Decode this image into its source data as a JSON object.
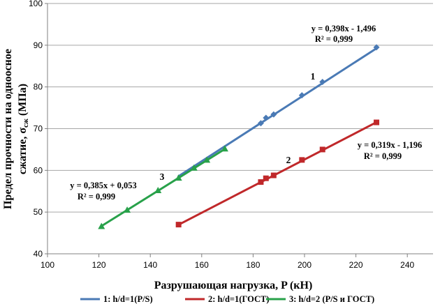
{
  "chart_data": {
    "type": "scatter",
    "xlabel": "Разрушающая нагрузка, P (кН)",
    "ylabel": "Предел прочности на одноосное сжатие, σсж (МПа)",
    "ylabel_line1": "Предел прочности на одноосное",
    "ylabel_line2_pre": "сжатие, σ",
    "ylabel_line2_sub": "сж",
    "ylabel_line2_post": " (МПа)",
    "xlim": [
      100,
      250
    ],
    "ylim": [
      40,
      100
    ],
    "xticks": [
      "100",
      "120",
      "140",
      "160",
      "180",
      "200",
      "220",
      "240"
    ],
    "yticks": [
      "40",
      "50",
      "60",
      "70",
      "80",
      "90",
      "100"
    ],
    "grid": "horizontal",
    "legend_position": "bottom",
    "series": [
      {
        "name": "1: h/d=1(P/S)",
        "label": "1",
        "color": "#4a7ab5",
        "marker": "diamond",
        "x": [
          183,
          185,
          188,
          199,
          207,
          228
        ],
        "y": [
          71.3,
          72.6,
          73.4,
          78.0,
          81.2,
          89.5
        ],
        "trend": [
          151,
          228
        ],
        "equation": "y = 0,398x - 1,496",
        "r2": "R² = 0,999"
      },
      {
        "name": "2: h/d=1(ГОСТ)",
        "label": "2",
        "color": "#c0282a",
        "marker": "square",
        "x": [
          151,
          183,
          185,
          188,
          199,
          207,
          228
        ],
        "y": [
          47.0,
          57.2,
          58.1,
          58.8,
          62.5,
          65.0,
          71.5
        ],
        "trend": [
          151,
          228
        ],
        "equation": "y = 0,319x - 1,196",
        "r2": "R² = 0,999"
      },
      {
        "name": "3: h/d=2 (P/S и ГОСТ)",
        "label": "3",
        "color": "#28a14a",
        "marker": "triangle",
        "x": [
          121,
          131,
          143,
          151,
          157,
          162,
          169
        ],
        "y": [
          46.6,
          50.5,
          55.2,
          58.2,
          60.6,
          62.5,
          65.2
        ],
        "trend": [
          121,
          169
        ],
        "equation": "y = 0,385x + 0,053",
        "r2": "R² = 0,999"
      }
    ]
  }
}
